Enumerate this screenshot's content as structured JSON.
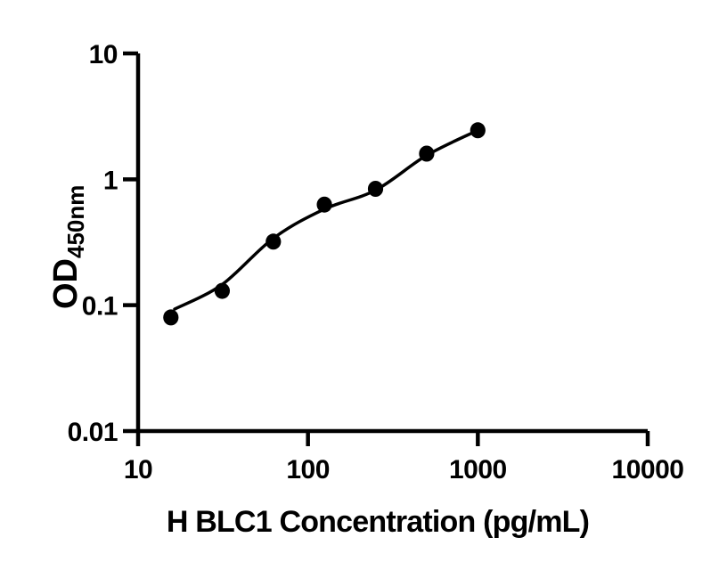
{
  "figure": {
    "background_color": "#ffffff",
    "foreground_color": "#000000"
  },
  "chart_data": {
    "type": "scatter",
    "xlabel": "H BLC1 Concentration (pg/mL)",
    "ylabel_main": "OD",
    "ylabel_sub": "450nm",
    "xscale": "log",
    "yscale": "log",
    "xlim": [
      10,
      10000
    ],
    "ylim": [
      0.01,
      10
    ],
    "x_ticks": [
      10,
      100,
      1000,
      10000
    ],
    "x_tick_labels": [
      "10",
      "100",
      "1000",
      "10000"
    ],
    "y_ticks": [
      10,
      1,
      0.1,
      0.01
    ],
    "y_tick_labels": [
      "10",
      "1",
      "0.1",
      "0.01"
    ],
    "grid": false,
    "legend": null,
    "series": [
      {
        "name": "standard-points",
        "kind": "scatter",
        "marker": "filled-circle",
        "color": "#000000",
        "x": [
          15.6,
          31.25,
          62.5,
          125,
          250,
          500,
          1000
        ],
        "y": [
          0.08,
          0.13,
          0.32,
          0.63,
          0.84,
          1.6,
          2.45
        ]
      },
      {
        "name": "fit-line",
        "kind": "line",
        "color": "#000000",
        "x": [
          16.4,
          31.25,
          62.5,
          125,
          250,
          500,
          1000
        ],
        "y": [
          0.093,
          0.146,
          0.34,
          0.58,
          0.82,
          1.55,
          2.45
        ]
      }
    ]
  }
}
